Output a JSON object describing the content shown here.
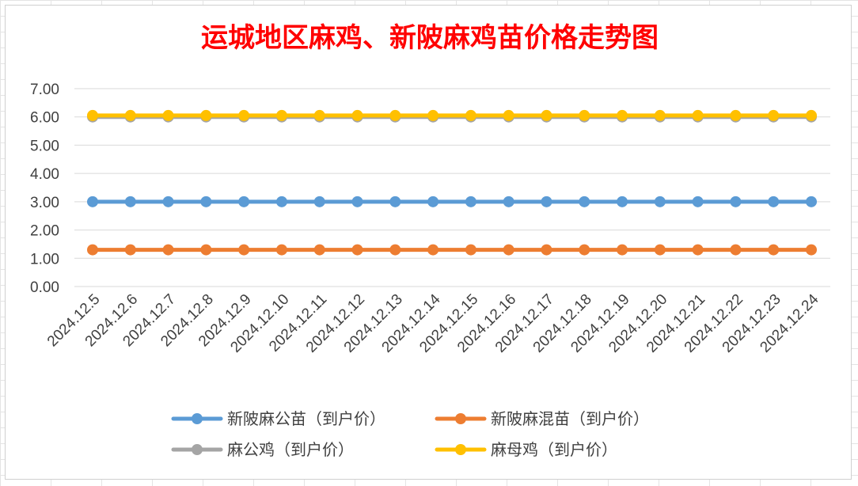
{
  "chart_data": {
    "type": "line",
    "title": "运城地区麻鸡、新陂麻鸡苗价格走势图",
    "xlabel": "",
    "ylabel": "",
    "ylim": [
      0,
      7
    ],
    "y_ticks": [
      "0.00",
      "1.00",
      "2.00",
      "3.00",
      "4.00",
      "5.00",
      "6.00",
      "7.00"
    ],
    "grid": true,
    "legend_position": "bottom",
    "categories": [
      "2024.12.5",
      "2024.12.6",
      "2024.12.7",
      "2024.12.8",
      "2024.12.9",
      "2024.12.10",
      "2024.12.11",
      "2024.12.12",
      "2024.12.13",
      "2024.12.14",
      "2024.12.15",
      "2024.12.16",
      "2024.12.17",
      "2024.12.18",
      "2024.12.19",
      "2024.12.20",
      "2024.12.21",
      "2024.12.22",
      "2024.12.23",
      "2024.12.24"
    ],
    "series": [
      {
        "name": "新陂麻公苗（到户价）",
        "color": "#5b9bd5",
        "values": [
          3,
          3,
          3,
          3,
          3,
          3,
          3,
          3,
          3,
          3,
          3,
          3,
          3,
          3,
          3,
          3,
          3,
          3,
          3,
          3
        ]
      },
      {
        "name": "新陂麻混苗（到户价）",
        "color": "#ed7d31",
        "values": [
          1.3,
          1.3,
          1.3,
          1.3,
          1.3,
          1.3,
          1.3,
          1.3,
          1.3,
          1.3,
          1.3,
          1.3,
          1.3,
          1.3,
          1.3,
          1.3,
          1.3,
          1.3,
          1.3,
          1.3
        ]
      },
      {
        "name": "麻公鸡（到户价）",
        "color": "#a5a5a5",
        "values": [
          6,
          6,
          6,
          6,
          6,
          6,
          6,
          6,
          6,
          6,
          6,
          6,
          6,
          6,
          6,
          6,
          6,
          6,
          6,
          6
        ]
      },
      {
        "name": "麻母鸡（到户价）",
        "color": "#ffc000",
        "values": [
          6.05,
          6.05,
          6.05,
          6.05,
          6.05,
          6.05,
          6.05,
          6.05,
          6.05,
          6.05,
          6.05,
          6.05,
          6.05,
          6.05,
          6.05,
          6.05,
          6.05,
          6.05,
          6.05,
          6.05
        ]
      }
    ]
  }
}
